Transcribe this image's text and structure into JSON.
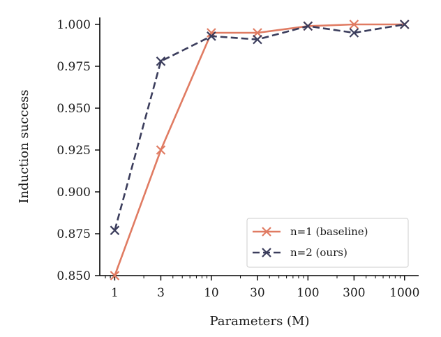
{
  "chart_data": {
    "type": "line",
    "xscale": "log",
    "x": [
      1,
      3,
      10,
      30,
      100,
      300,
      1000
    ],
    "xticks": [
      "1",
      "3",
      "10",
      "30",
      "100",
      "300",
      "1000"
    ],
    "xlabel": "Parameters (M)",
    "ylabel": "Induction success",
    "ylim": [
      0.85,
      1.0
    ],
    "yticks": [
      "0.850",
      "0.875",
      "0.900",
      "0.925",
      "0.950",
      "0.975",
      "1.000"
    ],
    "grid": false,
    "legend_position": "bottom-right",
    "series": [
      {
        "name": "n=1 (baseline)",
        "color": "#e07b62",
        "linestyle": "solid",
        "marker": "x",
        "values": [
          0.85,
          0.925,
          0.995,
          0.995,
          0.999,
          1.0,
          1.0
        ]
      },
      {
        "name": "n=2 (ours)",
        "color": "#3b3d5c",
        "linestyle": "dashed",
        "marker": "x",
        "values": [
          0.877,
          0.978,
          0.993,
          0.991,
          0.999,
          0.995,
          1.0
        ]
      }
    ]
  }
}
